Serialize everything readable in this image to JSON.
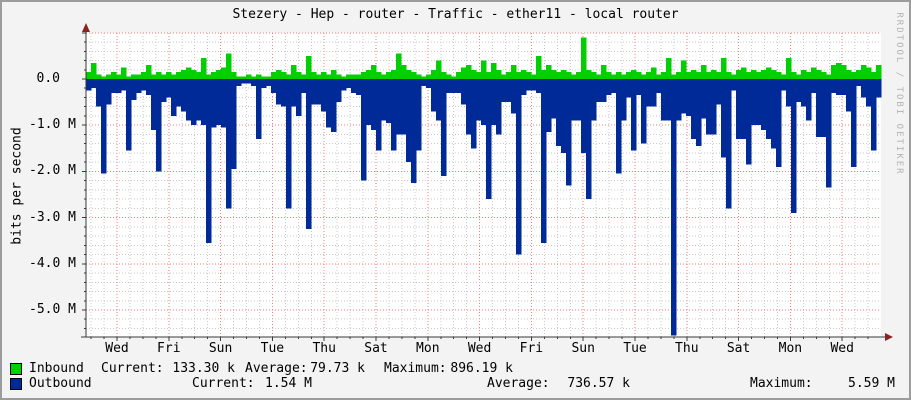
{
  "title": "Stezery - Hep - router - Traffic - ether11 - local router",
  "y_axis_label": "bits per second",
  "watermark": "RRDTOOL / TOBI OETIKER",
  "y_ticks": [
    "0.0",
    "-1.0 M",
    "-2.0 M",
    "-3.0 M",
    "-4.0 M",
    "-5.0 M"
  ],
  "x_ticks": [
    "Wed",
    "Fri",
    "Sun",
    "Tue",
    "Thu",
    "Sat",
    "Mon",
    "Wed",
    "Fri",
    "Sun",
    "Tue",
    "Thu",
    "Sat",
    "Mon",
    "Wed"
  ],
  "legend": {
    "inbound": {
      "label": "Inbound",
      "current_label": "Current:",
      "current": "133.30 k",
      "average_label": "Average:",
      "average": "79.73 k",
      "maximum_label": "Maximum:",
      "maximum": "896.19 k"
    },
    "outbound": {
      "label": "Outbound",
      "current_label": "Current:",
      "current": "1.54 M",
      "average_label": "Average:",
      "average": "736.57 k",
      "maximum_label": "Maximum:",
      "maximum": "5.59 M"
    }
  },
  "colors": {
    "inbound": "#00CF00",
    "outbound": "#002A97",
    "grid_minor": "#c9c9c9",
    "grid_major": "#f37b7b",
    "axis": "#3a3a3a",
    "arrow": "#8b2323",
    "canvas": "#ffffff",
    "background": "#f3f3f3",
    "watermark": "#b3b3b3"
  },
  "chart_data": {
    "type": "area",
    "title": "Stezery - Hep - router - Traffic - ether11 - local router",
    "ylabel": "bits per second",
    "unit": "Mbit/s (1 M = 1e6 bits/second); inbound positive, outbound plotted negative",
    "ylim": [
      -5.6,
      1.0
    ],
    "grid": "minor 0.2M / 12h dotted gray, major 1.0M / 2-day dotted red",
    "legend_position": "bottom-left, two rows with color swatches",
    "x_tick_labels": [
      "Wed",
      "Fri",
      "Sun",
      "Tue",
      "Thu",
      "Sat",
      "Mon",
      "Wed",
      "Fri",
      "Sun",
      "Tue",
      "Thu",
      "Sat",
      "Mon",
      "Wed"
    ],
    "y_tick_labels": [
      "0.0",
      "-1.0 M",
      "-2.0 M",
      "-3.0 M",
      "-4.0 M",
      "-5.0 M"
    ],
    "summary": {
      "inbound": {
        "current": "133.30 k",
        "average": "79.73 k",
        "maximum": "896.19 k"
      },
      "outbound": {
        "current": "1.54 M",
        "average": "736.57 k",
        "maximum": "5.59 M"
      }
    },
    "series": [
      {
        "name": "Inbound",
        "color": "#00CF00",
        "values": [
          0.15,
          0.35,
          0.1,
          0.05,
          0.1,
          0.15,
          0.1,
          0.25,
          0.05,
          0.1,
          0.1,
          0.15,
          0.3,
          0.1,
          0.15,
          0.1,
          0.15,
          0.1,
          0.15,
          0.2,
          0.25,
          0.2,
          0.15,
          0.45,
          0.1,
          0.15,
          0.2,
          0.25,
          0.55,
          0.15,
          0.05,
          0.05,
          0.1,
          0.05,
          0.1,
          0.05,
          0.05,
          0.15,
          0.2,
          0.15,
          0.1,
          0.3,
          0.15,
          0.1,
          0.5,
          0.15,
          0.1,
          0.15,
          0.1,
          0.2,
          0.1,
          0.05,
          0.1,
          0.1,
          0.1,
          0.15,
          0.2,
          0.3,
          0.15,
          0.1,
          0.15,
          0.2,
          0.55,
          0.3,
          0.2,
          0.15,
          0.1,
          0.05,
          0.1,
          0.2,
          0.4,
          0.15,
          0.1,
          0.05,
          0.15,
          0.25,
          0.3,
          0.2,
          0.15,
          0.4,
          0.15,
          0.35,
          0.2,
          0.1,
          0.15,
          0.3,
          0.15,
          0.2,
          0.15,
          0.1,
          0.5,
          0.2,
          0.3,
          0.2,
          0.15,
          0.2,
          0.15,
          0.1,
          0.15,
          0.9,
          0.2,
          0.15,
          0.1,
          0.3,
          0.15,
          0.1,
          0.15,
          0.1,
          0.15,
          0.2,
          0.15,
          0.1,
          0.15,
          0.25,
          0.1,
          0.15,
          0.45,
          0.1,
          0.15,
          0.4,
          0.15,
          0.2,
          0.15,
          0.3,
          0.15,
          0.2,
          0.15,
          0.45,
          0.15,
          0.1,
          0.2,
          0.25,
          0.15,
          0.2,
          0.15,
          0.2,
          0.25,
          0.2,
          0.15,
          0.1,
          0.45,
          0.15,
          0.1,
          0.2,
          0.15,
          0.25,
          0.2,
          0.15,
          0.1,
          0.3,
          0.35,
          0.3,
          0.2,
          0.15,
          0.2,
          0.3,
          0.25,
          0.15,
          0.3
        ]
      },
      {
        "name": "Outbound",
        "color": "#002A97",
        "values": [
          -0.25,
          -0.2,
          -0.6,
          -2.05,
          -0.55,
          -0.3,
          -0.3,
          -0.25,
          -1.55,
          -0.45,
          -0.3,
          -0.25,
          -0.35,
          -1.1,
          -2.0,
          -0.5,
          -0.4,
          -0.8,
          -0.6,
          -0.7,
          -0.9,
          -1.0,
          -0.9,
          -1.0,
          -3.55,
          -1.05,
          -1.0,
          -1.05,
          -2.8,
          -1.95,
          -0.15,
          -0.1,
          -0.1,
          -0.15,
          -1.3,
          -0.2,
          -0.15,
          -0.3,
          -0.55,
          -0.6,
          -2.8,
          -0.6,
          -0.8,
          -0.3,
          -3.25,
          -0.55,
          -0.55,
          -0.7,
          -1.05,
          -1.15,
          -0.5,
          -0.25,
          -0.2,
          -0.3,
          -0.35,
          -2.2,
          -1.0,
          -1.1,
          -1.55,
          -0.9,
          -0.95,
          -1.55,
          -1.2,
          -1.2,
          -1.8,
          -2.25,
          -1.55,
          -0.15,
          -0.2,
          -0.7,
          -0.9,
          -2.1,
          -0.3,
          -0.3,
          -0.3,
          -0.55,
          -1.2,
          -1.5,
          -0.9,
          -1.0,
          -2.6,
          -1.0,
          -1.2,
          -0.5,
          -0.5,
          -0.75,
          -3.8,
          -0.35,
          -0.25,
          -0.25,
          -0.3,
          -3.55,
          -1.15,
          -0.85,
          -1.45,
          -1.6,
          -2.3,
          -0.9,
          -0.9,
          -1.6,
          -2.6,
          -0.9,
          -0.5,
          -0.5,
          -0.35,
          -0.3,
          -2.05,
          -0.9,
          -0.4,
          -1.55,
          -0.35,
          -1.4,
          -0.6,
          -0.6,
          -0.3,
          -0.9,
          -0.9,
          -5.55,
          -0.9,
          -0.75,
          -0.8,
          -1.3,
          -1.45,
          -0.85,
          -1.2,
          -1.2,
          -0.55,
          -1.7,
          -2.8,
          -0.25,
          -1.3,
          -1.3,
          -1.85,
          -1.0,
          -1.0,
          -1.1,
          -1.3,
          -1.5,
          -1.9,
          -0.25,
          -0.6,
          -2.9,
          -0.5,
          -0.6,
          -0.9,
          -0.3,
          -1.25,
          -1.25,
          -2.35,
          -0.3,
          -0.35,
          -0.35,
          -0.7,
          -1.9,
          -0.15,
          -0.4,
          -0.6,
          -1.55,
          -0.4
        ]
      }
    ]
  }
}
